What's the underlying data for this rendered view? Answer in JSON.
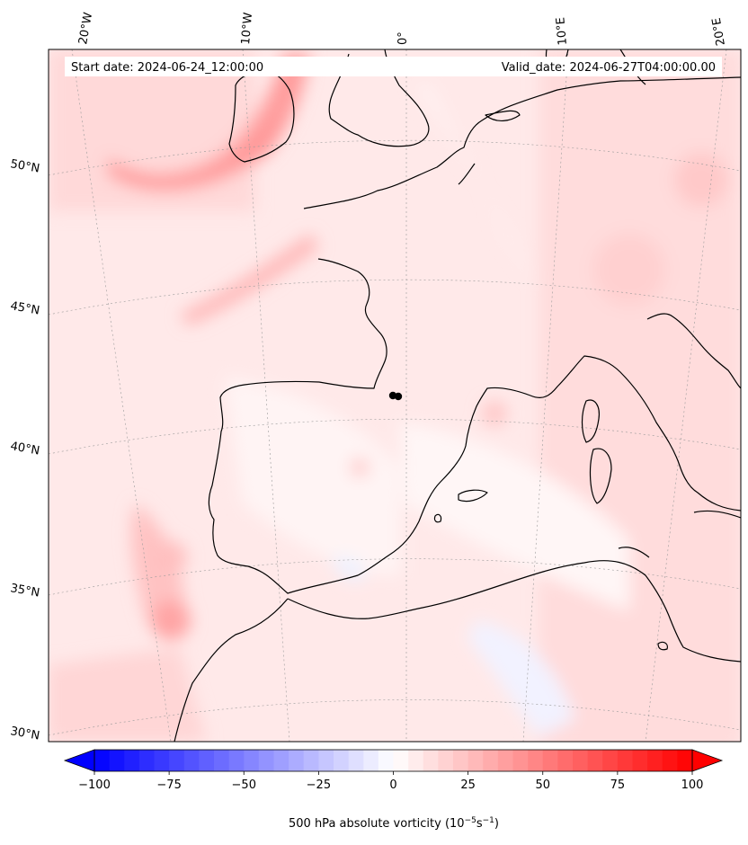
{
  "header": {
    "start_label": "Start date: 2024-06-24_12:00:00",
    "valid_label": "Valid_date: 2024-06-27T04:00:00.00"
  },
  "map": {
    "lon_labels": [
      "20°W",
      "10°W",
      "0°",
      "10°E",
      "20°E"
    ],
    "lat_labels": [
      "50°N",
      "45°N",
      "40°N",
      "35°N",
      "30°N"
    ],
    "gridlines": true,
    "field": "500 hPa absolute vorticity",
    "marker_color": "#000000",
    "coast_color": "#000000"
  },
  "colorbar": {
    "ticks": [
      "-100",
      "-75",
      "-50",
      "-25",
      "0",
      "25",
      "50",
      "75",
      "100"
    ],
    "range": [
      -100,
      100
    ],
    "step": 5,
    "extend": "both",
    "cmap": "bwr",
    "label_main": "500 hPa absolute vorticity (10",
    "label_exp1": "−5",
    "label_mid": "s",
    "label_exp2": "−1",
    "label_end": ")"
  }
}
